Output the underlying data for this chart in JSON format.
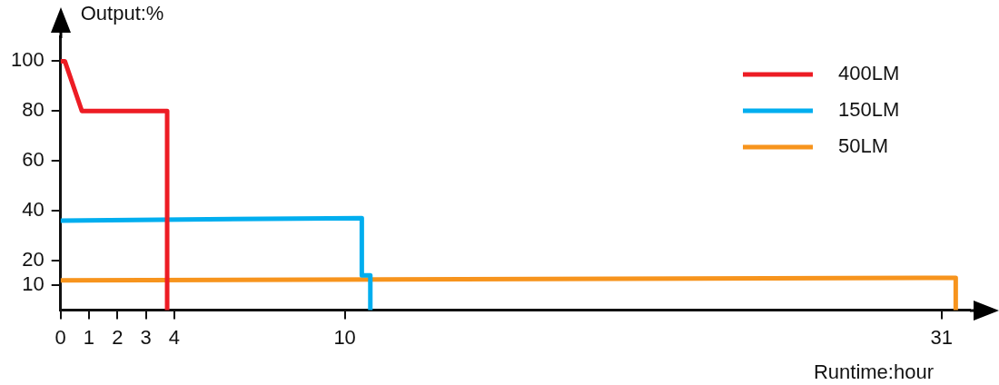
{
  "chart_data": {
    "type": "line",
    "xlabel": "Runtime:hour",
    "ylabel": "Output:%",
    "xlim": [
      0,
      32
    ],
    "ylim": [
      0,
      110
    ],
    "xticks": [
      0,
      1,
      2,
      3,
      4,
      10,
      31
    ],
    "yticks": [
      10,
      20,
      40,
      60,
      80,
      100
    ],
    "legend": "top right",
    "grid": false,
    "series": [
      {
        "name": "400LM",
        "color": "#ed1c24",
        "x": [
          0,
          0.15,
          0.75,
          3.75,
          3.75
        ],
        "values": [
          100,
          100,
          80,
          80,
          0
        ]
      },
      {
        "name": "150LM",
        "color": "#00aeef",
        "x": [
          0,
          10.6,
          10.6,
          10.9,
          10.9
        ],
        "values": [
          36,
          37,
          14,
          14,
          0
        ]
      },
      {
        "name": "50LM",
        "color": "#f7941d",
        "x": [
          0,
          31.5,
          31.5
        ],
        "values": [
          12,
          13,
          0
        ]
      }
    ]
  }
}
